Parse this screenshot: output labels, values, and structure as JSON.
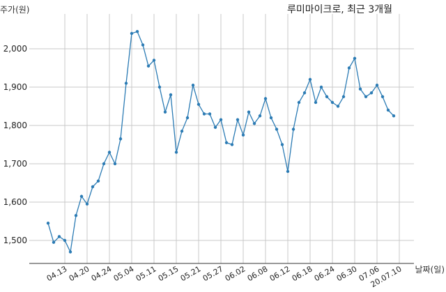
{
  "chart_data": {
    "type": "line",
    "title": "루미마이크로, 최근 3개월",
    "ylabel": "주가(원)",
    "xlabel": "날짜(일)",
    "ylim": [
      1440,
      2080
    ],
    "yticks": [
      1500,
      1600,
      1700,
      1800,
      1900,
      2000
    ],
    "ytick_labels": [
      "1,500",
      "1,600",
      "1,700",
      "1,800",
      "1,900",
      "2,000"
    ],
    "xtick_labels": [
      "04.13",
      "04.20",
      "04.24",
      "05.04",
      "05.11",
      "05.15",
      "05.21",
      "05.27",
      "06.02",
      "06.08",
      "06.12",
      "06.18",
      "06.24",
      "06.30",
      "07.06",
      "20.07.10"
    ],
    "xtick_index": [
      3,
      7,
      11,
      15,
      19,
      23,
      27,
      31,
      35,
      39,
      43,
      47,
      51,
      55,
      59,
      63
    ],
    "grid": true,
    "series": [
      {
        "color": "#2b7bb4",
        "values": [
          1545,
          1495,
          1510,
          1500,
          1470,
          1565,
          1615,
          1595,
          1640,
          1655,
          1700,
          1730,
          1700,
          1765,
          1910,
          2040,
          2045,
          2010,
          1955,
          1970,
          1900,
          1835,
          1880,
          1730,
          1785,
          1820,
          1905,
          1855,
          1830,
          1830,
          1795,
          1815,
          1755,
          1750,
          1815,
          1775,
          1835,
          1805,
          1825,
          1870,
          1820,
          1790,
          1750,
          1680,
          1790,
          1860,
          1885,
          1920,
          1860,
          1900,
          1875,
          1860,
          1850,
          1875,
          1950,
          1975,
          1895,
          1875,
          1885,
          1905,
          1875,
          1840,
          1825
        ]
      }
    ]
  }
}
